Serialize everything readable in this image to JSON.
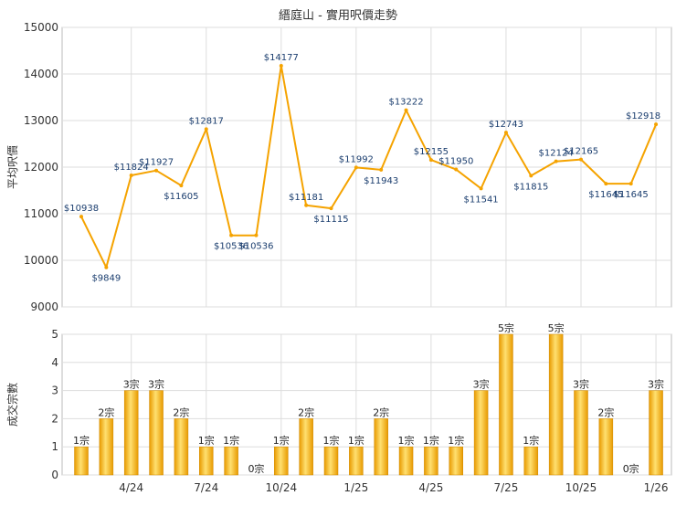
{
  "title": "縉庭山 - 實用呎價走勢",
  "colors": {
    "line": "#F5A300",
    "label": "#1a3d6e",
    "bar_light": "#FFE070",
    "bar_dark": "#E89A00",
    "grid": "#dddddd",
    "axis": "#333333"
  },
  "chart_data": [
    {
      "type": "line",
      "ylabel": "平均呎價",
      "ylim": [
        9000,
        15000
      ],
      "yticks": [
        9000,
        10000,
        11000,
        12000,
        13000,
        14000,
        15000
      ],
      "ytick_labels": [
        "9000",
        "10000",
        "11000",
        "12000",
        "13000",
        "14000",
        "15000"
      ],
      "values": [
        10938,
        9849,
        11824,
        11927,
        11605,
        12817,
        10536,
        10536,
        14177,
        11181,
        11115,
        11992,
        11943,
        13222,
        12155,
        11950,
        11541,
        12743,
        11815,
        12124,
        12165,
        11645,
        11645,
        12918
      ],
      "point_labels": [
        "$10938",
        "$9849",
        "$11824",
        "$11927",
        "$11605",
        "$12817",
        "$10536",
        "$10536",
        "$14177",
        "$11181",
        "$11115",
        "$11992",
        "$11943",
        "$13222",
        "$12155",
        "$11950",
        "$11541",
        "$12743",
        "$11815",
        "$12124",
        "$12165",
        "$11645",
        "$11645",
        "$12918"
      ]
    },
    {
      "type": "bar",
      "ylabel": "成交宗數",
      "ylim": [
        0,
        5
      ],
      "yticks": [
        0,
        1,
        2,
        3,
        4,
        5
      ],
      "ytick_labels": [
        "0",
        "1",
        "2",
        "3",
        "4",
        "5"
      ],
      "values": [
        1,
        2,
        3,
        3,
        2,
        1,
        1,
        0,
        1,
        2,
        1,
        1,
        2,
        1,
        1,
        1,
        3,
        5,
        1,
        5,
        3,
        2,
        0,
        3
      ],
      "bar_labels": [
        "1宗",
        "2宗",
        "3宗",
        "3宗",
        "2宗",
        "1宗",
        "1宗",
        "0宗",
        "1宗",
        "2宗",
        "1宗",
        "1宗",
        "2宗",
        "1宗",
        "1宗",
        "1宗",
        "3宗",
        "5宗",
        "1宗",
        "5宗",
        "3宗",
        "2宗",
        "0宗",
        "3宗"
      ],
      "x_ticks": [
        {
          "index": 2,
          "label": "4/24"
        },
        {
          "index": 5,
          "label": "7/24"
        },
        {
          "index": 8,
          "label": "10/24"
        },
        {
          "index": 11,
          "label": "1/25"
        },
        {
          "index": 14,
          "label": "4/25"
        },
        {
          "index": 17,
          "label": "7/25"
        },
        {
          "index": 20,
          "label": "10/25"
        },
        {
          "index": 23,
          "label": "1/26"
        }
      ]
    }
  ]
}
